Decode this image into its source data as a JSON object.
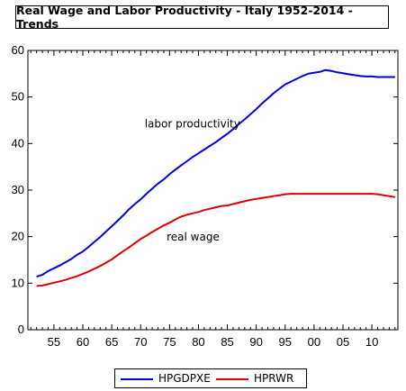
{
  "chart_data": {
    "type": "line",
    "title": "Real Wage and Labor Productivity - Italy 1952-2014 - Trends",
    "xlabel": "",
    "ylabel": "",
    "xlim": [
      1950.5,
      2014.5
    ],
    "ylim": [
      0,
      60
    ],
    "yticks": [
      0,
      10,
      20,
      30,
      40,
      50,
      60
    ],
    "xticks": [
      {
        "year": 1955,
        "label": "55"
      },
      {
        "year": 1960,
        "label": "60"
      },
      {
        "year": 1965,
        "label": "65"
      },
      {
        "year": 1970,
        "label": "70"
      },
      {
        "year": 1975,
        "label": "75"
      },
      {
        "year": 1980,
        "label": "80"
      },
      {
        "year": 1985,
        "label": "85"
      },
      {
        "year": 1990,
        "label": "90"
      },
      {
        "year": 1995,
        "label": "95"
      },
      {
        "year": 2000,
        "label": "00"
      },
      {
        "year": 2005,
        "label": "05"
      },
      {
        "year": 2010,
        "label": "10"
      }
    ],
    "grid": false,
    "legend_position": "bottom",
    "annotations": [
      {
        "text": "labor productivity",
        "x": 1970.7,
        "y": 43.5
      },
      {
        "text": "real wage",
        "x": 1974.5,
        "y": 19.2
      }
    ],
    "series": [
      {
        "name": "HPGDPXE",
        "color": "#0000dd",
        "x": [
          1952,
          1953,
          1954,
          1955,
          1956,
          1957,
          1958,
          1959,
          1960,
          1961,
          1962,
          1963,
          1964,
          1965,
          1966,
          1967,
          1968,
          1969,
          1970,
          1971,
          1972,
          1973,
          1974,
          1975,
          1976,
          1977,
          1978,
          1979,
          1980,
          1981,
          1982,
          1983,
          1984,
          1985,
          1986,
          1987,
          1988,
          1989,
          1990,
          1991,
          1992,
          1993,
          1994,
          1995,
          1996,
          1997,
          1998,
          1999,
          2000,
          2001,
          2002,
          2003,
          2004,
          2005,
          2006,
          2007,
          2008,
          2009,
          2010,
          2011,
          2012,
          2013,
          2014
        ],
        "y": [
          11.4,
          11.8,
          12.6,
          13.2,
          13.8,
          14.5,
          15.2,
          16.1,
          16.8,
          17.8,
          18.9,
          19.9,
          21.1,
          22.2,
          23.4,
          24.6,
          25.9,
          27.0,
          28.0,
          29.2,
          30.3,
          31.4,
          32.3,
          33.4,
          34.4,
          35.3,
          36.2,
          37.1,
          37.9,
          38.7,
          39.5,
          40.3,
          41.2,
          42.1,
          43.1,
          44.2,
          45.2,
          46.3,
          47.4,
          48.6,
          49.7,
          50.8,
          51.8,
          52.7,
          53.3,
          53.9,
          54.5,
          55.0,
          55.2,
          55.4,
          55.8,
          55.6,
          55.3,
          55.1,
          54.9,
          54.7,
          54.5,
          54.4,
          54.4,
          54.3,
          54.3,
          54.3,
          54.3
        ]
      },
      {
        "name": "HPRWR",
        "color": "#dd0000",
        "x": [
          1952,
          1953,
          1954,
          1955,
          1956,
          1957,
          1958,
          1959,
          1960,
          1961,
          1962,
          1963,
          1964,
          1965,
          1966,
          1967,
          1968,
          1969,
          1970,
          1971,
          1972,
          1973,
          1974,
          1975,
          1976,
          1977,
          1978,
          1979,
          1980,
          1981,
          1982,
          1983,
          1984,
          1985,
          1986,
          1987,
          1988,
          1989,
          1990,
          1991,
          1992,
          1993,
          1994,
          1995,
          1996,
          1997,
          1998,
          1999,
          2000,
          2001,
          2002,
          2003,
          2004,
          2005,
          2006,
          2007,
          2008,
          2009,
          2010,
          2011,
          2012,
          2013,
          2014
        ],
        "y": [
          9.4,
          9.5,
          9.8,
          10.1,
          10.4,
          10.7,
          11.1,
          11.5,
          12.0,
          12.5,
          13.1,
          13.7,
          14.4,
          15.1,
          16.0,
          16.9,
          17.7,
          18.6,
          19.5,
          20.2,
          21.0,
          21.7,
          22.4,
          23.0,
          23.7,
          24.3,
          24.7,
          25.0,
          25.3,
          25.7,
          26.0,
          26.3,
          26.6,
          26.7,
          27.0,
          27.3,
          27.6,
          27.9,
          28.1,
          28.3,
          28.5,
          28.7,
          28.9,
          29.1,
          29.2,
          29.2,
          29.2,
          29.2,
          29.2,
          29.2,
          29.2,
          29.2,
          29.2,
          29.2,
          29.2,
          29.2,
          29.2,
          29.2,
          29.2,
          29.1,
          28.9,
          28.7,
          28.5
        ]
      }
    ]
  }
}
